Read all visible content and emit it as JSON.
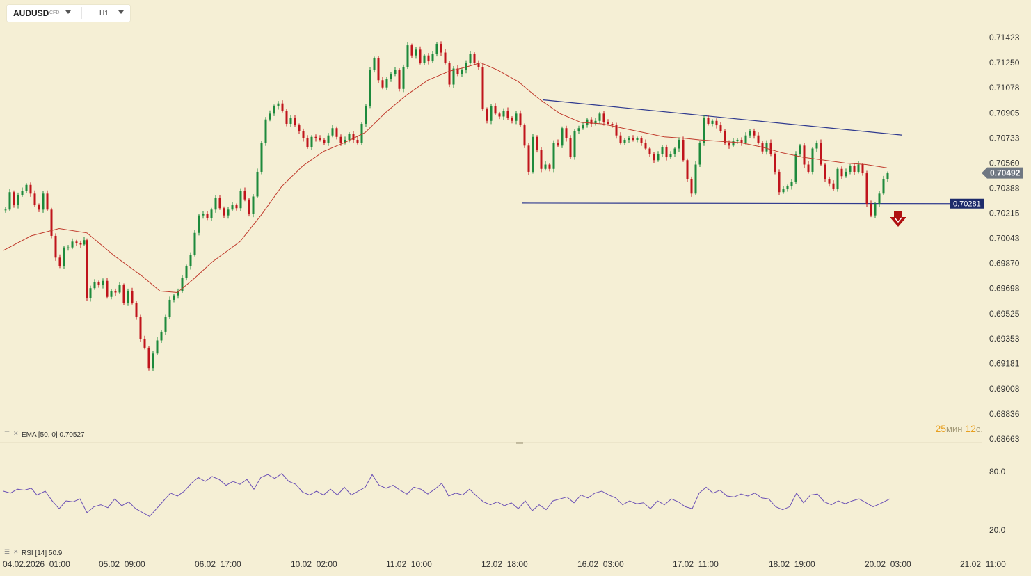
{
  "header": {
    "symbol": "AUDUSD",
    "type": "CFD",
    "timeframe": "H1"
  },
  "indicators": {
    "ema": {
      "label": "EMA [50, 0] 0.70527",
      "color": "#c0392b"
    },
    "rsi": {
      "label": "RSI [14] 50.9",
      "color": "#6a4fb5"
    }
  },
  "timer": {
    "min_value": "25",
    "min_unit": "мин",
    "sec_value": "12",
    "sec_unit": "с."
  },
  "current_price_label": "0.70492",
  "support_label": "0.70281",
  "colors": {
    "background": "#f5efd5",
    "bull": "#1d8a3c",
    "bear": "#c0141c",
    "trend": "#2f3a8f",
    "price_tag": "#6f7782",
    "support_tag": "#1d2b6b",
    "arrow": "#b01010"
  },
  "icons": [
    "settings-icon",
    "close-icon",
    "chevron-down-icon",
    "down-arrow-icon"
  ],
  "chart_data": {
    "type": "candlestick",
    "y_ticks": [
      "0.71423",
      "0.71250",
      "0.71078",
      "0.70905",
      "0.70733",
      "0.70560",
      "0.70388",
      "0.70215",
      "0.70043",
      "0.69870",
      "0.69698",
      "0.69525",
      "0.69353",
      "0.69181",
      "0.69008",
      "0.68836",
      "0.68663"
    ],
    "ylim": [
      0.68663,
      0.71423
    ],
    "x_ticks": [
      "04.02.2026  01:00",
      "05.02  09:00",
      "06.02  17:00",
      "10.02  02:00",
      "11.02  10:00",
      "12.02  18:00",
      "16.02  03:00",
      "17.02  11:00",
      "18.02  19:00",
      "20.02  03:00",
      "21.02  11:00"
    ],
    "close_path": [
      [
        0,
        0.7024
      ],
      [
        6,
        0.7024
      ],
      [
        12,
        0.7036
      ],
      [
        18,
        0.7027
      ],
      [
        24,
        0.7034
      ],
      [
        30,
        0.7037
      ],
      [
        36,
        0.7041
      ],
      [
        42,
        0.7035
      ],
      [
        48,
        0.7027
      ],
      [
        54,
        0.7024
      ],
      [
        60,
        0.7035
      ],
      [
        66,
        0.7024
      ],
      [
        72,
        0.7006
      ],
      [
        78,
        0.6991
      ],
      [
        84,
        0.6985
      ],
      [
        90,
        0.6998
      ],
      [
        96,
        0.6998
      ],
      [
        102,
        0.7002
      ],
      [
        108,
        0.7001
      ],
      [
        114,
        0.7
      ],
      [
        118,
        0.7003
      ],
      [
        122,
        0.6963
      ],
      [
        128,
        0.697
      ],
      [
        134,
        0.6974
      ],
      [
        140,
        0.6972
      ],
      [
        146,
        0.6975
      ],
      [
        152,
        0.6964
      ],
      [
        158,
        0.6968
      ],
      [
        164,
        0.6967
      ],
      [
        170,
        0.6972
      ],
      [
        176,
        0.696
      ],
      [
        182,
        0.6968
      ],
      [
        188,
        0.696
      ],
      [
        194,
        0.695
      ],
      [
        200,
        0.6935
      ],
      [
        206,
        0.6929
      ],
      [
        212,
        0.6915
      ],
      [
        218,
        0.6925
      ],
      [
        224,
        0.6934
      ],
      [
        230,
        0.694
      ],
      [
        236,
        0.695
      ],
      [
        242,
        0.6962
      ],
      [
        248,
        0.6965
      ],
      [
        254,
        0.6968
      ],
      [
        260,
        0.6977
      ],
      [
        266,
        0.6985
      ],
      [
        272,
        0.6993
      ],
      [
        278,
        0.7008
      ],
      [
        284,
        0.702
      ],
      [
        290,
        0.7021
      ],
      [
        296,
        0.7018
      ],
      [
        302,
        0.7024
      ],
      [
        308,
        0.7032
      ],
      [
        314,
        0.7025
      ],
      [
        320,
        0.702
      ],
      [
        326,
        0.7024
      ],
      [
        332,
        0.7027
      ],
      [
        338,
        0.7025
      ],
      [
        344,
        0.7037
      ],
      [
        350,
        0.7031
      ],
      [
        356,
        0.7021
      ],
      [
        362,
        0.7033
      ],
      [
        368,
        0.705
      ],
      [
        374,
        0.707
      ],
      [
        380,
        0.7086
      ],
      [
        386,
        0.709
      ],
      [
        392,
        0.7095
      ],
      [
        398,
        0.7097
      ],
      [
        404,
        0.7092
      ],
      [
        410,
        0.7083
      ],
      [
        416,
        0.7087
      ],
      [
        422,
        0.7082
      ],
      [
        428,
        0.7078
      ],
      [
        434,
        0.7073
      ],
      [
        440,
        0.7067
      ],
      [
        446,
        0.7074
      ],
      [
        452,
        0.7073
      ],
      [
        458,
        0.7072
      ],
      [
        464,
        0.707
      ],
      [
        470,
        0.7075
      ],
      [
        476,
        0.708
      ],
      [
        482,
        0.7074
      ],
      [
        488,
        0.707
      ],
      [
        494,
        0.7072
      ],
      [
        500,
        0.7076
      ],
      [
        506,
        0.7072
      ],
      [
        512,
        0.707
      ],
      [
        518,
        0.7083
      ],
      [
        524,
        0.7095
      ],
      [
        530,
        0.712
      ],
      [
        536,
        0.7128
      ],
      [
        542,
        0.7113
      ],
      [
        548,
        0.7108
      ],
      [
        554,
        0.7114
      ],
      [
        560,
        0.7117
      ],
      [
        566,
        0.712
      ],
      [
        572,
        0.7107
      ],
      [
        578,
        0.7122
      ],
      [
        584,
        0.7137
      ],
      [
        590,
        0.713
      ],
      [
        596,
        0.7134
      ],
      [
        602,
        0.7125
      ],
      [
        608,
        0.713
      ],
      [
        614,
        0.7126
      ],
      [
        620,
        0.7131
      ],
      [
        626,
        0.7138
      ],
      [
        632,
        0.7132
      ],
      [
        638,
        0.7125
      ],
      [
        644,
        0.711
      ],
      [
        650,
        0.7121
      ],
      [
        656,
        0.7117
      ],
      [
        662,
        0.712
      ],
      [
        668,
        0.7125
      ],
      [
        674,
        0.7131
      ],
      [
        680,
        0.7125
      ],
      [
        686,
        0.7122
      ],
      [
        692,
        0.7093
      ],
      [
        698,
        0.7085
      ],
      [
        704,
        0.7095
      ],
      [
        710,
        0.709
      ],
      [
        716,
        0.7088
      ],
      [
        722,
        0.7092
      ],
      [
        728,
        0.7087
      ],
      [
        734,
        0.7085
      ],
      [
        740,
        0.709
      ],
      [
        746,
        0.7082
      ],
      [
        752,
        0.7068
      ],
      [
        758,
        0.705
      ],
      [
        764,
        0.7074
      ],
      [
        770,
        0.7065
      ],
      [
        776,
        0.7052
      ],
      [
        782,
        0.7055
      ],
      [
        788,
        0.7052
      ],
      [
        794,
        0.707
      ],
      [
        800,
        0.7068
      ],
      [
        806,
        0.708
      ],
      [
        812,
        0.7073
      ],
      [
        818,
        0.706
      ],
      [
        824,
        0.7078
      ],
      [
        830,
        0.708
      ],
      [
        836,
        0.7082
      ],
      [
        842,
        0.7086
      ],
      [
        848,
        0.7083
      ],
      [
        854,
        0.7085
      ],
      [
        860,
        0.709
      ],
      [
        866,
        0.7084
      ],
      [
        872,
        0.7083
      ],
      [
        878,
        0.7082
      ],
      [
        884,
        0.7075
      ],
      [
        890,
        0.707
      ],
      [
        896,
        0.7072
      ],
      [
        902,
        0.7073
      ],
      [
        908,
        0.7072
      ],
      [
        914,
        0.7073
      ],
      [
        920,
        0.707
      ],
      [
        926,
        0.7066
      ],
      [
        932,
        0.7062
      ],
      [
        938,
        0.7058
      ],
      [
        944,
        0.7062
      ],
      [
        950,
        0.7067
      ],
      [
        956,
        0.706
      ],
      [
        962,
        0.7062
      ],
      [
        968,
        0.7066
      ],
      [
        974,
        0.7072
      ],
      [
        980,
        0.7058
      ],
      [
        986,
        0.7045
      ],
      [
        992,
        0.7035
      ],
      [
        998,
        0.7055
      ],
      [
        1004,
        0.707
      ],
      [
        1010,
        0.7087
      ],
      [
        1016,
        0.7083
      ],
      [
        1022,
        0.7085
      ],
      [
        1028,
        0.7082
      ],
      [
        1034,
        0.7078
      ],
      [
        1040,
        0.707
      ],
      [
        1046,
        0.7068
      ],
      [
        1052,
        0.7071
      ],
      [
        1058,
        0.7072
      ],
      [
        1064,
        0.707
      ],
      [
        1070,
        0.7075
      ],
      [
        1076,
        0.7078
      ],
      [
        1082,
        0.7075
      ],
      [
        1088,
        0.707
      ],
      [
        1094,
        0.7064
      ],
      [
        1100,
        0.707
      ],
      [
        1106,
        0.7062
      ],
      [
        1112,
        0.705
      ],
      [
        1118,
        0.7036
      ],
      [
        1124,
        0.7038
      ],
      [
        1130,
        0.704
      ],
      [
        1136,
        0.7043
      ],
      [
        1142,
        0.7062
      ],
      [
        1148,
        0.7068
      ],
      [
        1154,
        0.7055
      ],
      [
        1160,
        0.705
      ],
      [
        1166,
        0.7066
      ],
      [
        1172,
        0.707
      ],
      [
        1178,
        0.7055
      ],
      [
        1184,
        0.7045
      ],
      [
        1190,
        0.7042
      ],
      [
        1196,
        0.7038
      ],
      [
        1202,
        0.7052
      ],
      [
        1208,
        0.7047
      ],
      [
        1214,
        0.705
      ],
      [
        1220,
        0.7054
      ],
      [
        1226,
        0.705
      ],
      [
        1232,
        0.7055
      ],
      [
        1238,
        0.7049
      ],
      [
        1244,
        0.7028
      ],
      [
        1250,
        0.702
      ],
      [
        1256,
        0.7028
      ],
      [
        1262,
        0.7035
      ],
      [
        1268,
        0.7045
      ],
      [
        1274,
        0.7049
      ]
    ],
    "ema_path": [
      [
        0,
        0.6996
      ],
      [
        40,
        0.7006
      ],
      [
        80,
        0.7011
      ],
      [
        120,
        0.7008
      ],
      [
        160,
        0.6992
      ],
      [
        200,
        0.6978
      ],
      [
        225,
        0.6968
      ],
      [
        250,
        0.6967
      ],
      [
        275,
        0.6977
      ],
      [
        300,
        0.6988
      ],
      [
        340,
        0.7002
      ],
      [
        370,
        0.702
      ],
      [
        400,
        0.704
      ],
      [
        430,
        0.7054
      ],
      [
        460,
        0.7064
      ],
      [
        490,
        0.707
      ],
      [
        520,
        0.7077
      ],
      [
        550,
        0.7091
      ],
      [
        580,
        0.7103
      ],
      [
        610,
        0.7113
      ],
      [
        640,
        0.7119
      ],
      [
        665,
        0.7122
      ],
      [
        686,
        0.7125
      ],
      [
        710,
        0.712
      ],
      [
        740,
        0.7112
      ],
      [
        770,
        0.71
      ],
      [
        800,
        0.709
      ],
      [
        830,
        0.7084
      ],
      [
        860,
        0.7083
      ],
      [
        890,
        0.708
      ],
      [
        920,
        0.7077
      ],
      [
        950,
        0.7074
      ],
      [
        980,
        0.7073
      ],
      [
        1000,
        0.7072
      ],
      [
        1030,
        0.7071
      ],
      [
        1060,
        0.707
      ],
      [
        1090,
        0.7067
      ],
      [
        1120,
        0.7063
      ],
      [
        1150,
        0.706
      ],
      [
        1180,
        0.7058
      ],
      [
        1210,
        0.7056
      ],
      [
        1240,
        0.7055
      ],
      [
        1270,
        0.70527
      ]
    ],
    "rsi_ticks": [
      "80.0",
      "20.0"
    ],
    "rsi_range": [
      0,
      100
    ],
    "rsi_path": [
      [
        0,
        60
      ],
      [
        10,
        58
      ],
      [
        20,
        62
      ],
      [
        30,
        61
      ],
      [
        40,
        63
      ],
      [
        48,
        56
      ],
      [
        60,
        60
      ],
      [
        70,
        50
      ],
      [
        80,
        42
      ],
      [
        90,
        50
      ],
      [
        100,
        49
      ],
      [
        110,
        52
      ],
      [
        120,
        38
      ],
      [
        130,
        44
      ],
      [
        140,
        46
      ],
      [
        150,
        43
      ],
      [
        160,
        52
      ],
      [
        170,
        45
      ],
      [
        180,
        49
      ],
      [
        190,
        42
      ],
      [
        200,
        38
      ],
      [
        210,
        34
      ],
      [
        220,
        42
      ],
      [
        230,
        50
      ],
      [
        240,
        58
      ],
      [
        250,
        55
      ],
      [
        260,
        60
      ],
      [
        270,
        68
      ],
      [
        280,
        74
      ],
      [
        290,
        70
      ],
      [
        300,
        75
      ],
      [
        310,
        72
      ],
      [
        320,
        66
      ],
      [
        330,
        70
      ],
      [
        340,
        67
      ],
      [
        350,
        72
      ],
      [
        360,
        62
      ],
      [
        370,
        74
      ],
      [
        380,
        77
      ],
      [
        390,
        73
      ],
      [
        400,
        78
      ],
      [
        410,
        70
      ],
      [
        420,
        67
      ],
      [
        430,
        59
      ],
      [
        440,
        56
      ],
      [
        450,
        60
      ],
      [
        460,
        56
      ],
      [
        470,
        62
      ],
      [
        480,
        56
      ],
      [
        490,
        64
      ],
      [
        500,
        56
      ],
      [
        510,
        60
      ],
      [
        520,
        64
      ],
      [
        530,
        77
      ],
      [
        540,
        66
      ],
      [
        550,
        63
      ],
      [
        560,
        66
      ],
      [
        570,
        61
      ],
      [
        580,
        57
      ],
      [
        590,
        64
      ],
      [
        600,
        62
      ],
      [
        610,
        57
      ],
      [
        620,
        62
      ],
      [
        630,
        68
      ],
      [
        640,
        55
      ],
      [
        650,
        58
      ],
      [
        660,
        56
      ],
      [
        670,
        62
      ],
      [
        680,
        55
      ],
      [
        690,
        49
      ],
      [
        700,
        46
      ],
      [
        710,
        49
      ],
      [
        720,
        45
      ],
      [
        730,
        48
      ],
      [
        740,
        42
      ],
      [
        750,
        50
      ],
      [
        760,
        40
      ],
      [
        770,
        46
      ],
      [
        780,
        41
      ],
      [
        790,
        50
      ],
      [
        800,
        52
      ],
      [
        810,
        54
      ],
      [
        820,
        48
      ],
      [
        830,
        56
      ],
      [
        840,
        53
      ],
      [
        850,
        58
      ],
      [
        860,
        60
      ],
      [
        870,
        56
      ],
      [
        880,
        53
      ],
      [
        890,
        46
      ],
      [
        900,
        50
      ],
      [
        910,
        47
      ],
      [
        920,
        48
      ],
      [
        930,
        42
      ],
      [
        940,
        50
      ],
      [
        950,
        46
      ],
      [
        960,
        52
      ],
      [
        970,
        49
      ],
      [
        980,
        44
      ],
      [
        990,
        42
      ],
      [
        1000,
        58
      ],
      [
        1010,
        64
      ],
      [
        1020,
        58
      ],
      [
        1030,
        61
      ],
      [
        1040,
        55
      ],
      [
        1050,
        54
      ],
      [
        1060,
        57
      ],
      [
        1070,
        55
      ],
      [
        1080,
        58
      ],
      [
        1090,
        53
      ],
      [
        1100,
        52
      ],
      [
        1110,
        44
      ],
      [
        1120,
        41
      ],
      [
        1130,
        44
      ],
      [
        1140,
        58
      ],
      [
        1150,
        48
      ],
      [
        1160,
        56
      ],
      [
        1170,
        57
      ],
      [
        1180,
        49
      ],
      [
        1190,
        46
      ],
      [
        1200,
        50
      ],
      [
        1210,
        47
      ],
      [
        1220,
        50
      ],
      [
        1230,
        52
      ],
      [
        1240,
        48
      ],
      [
        1250,
        44
      ],
      [
        1260,
        47
      ],
      [
        1274,
        52
      ]
    ],
    "trend_lines": [
      {
        "name": "resistance",
        "from": [
          775,
          0.70995
        ],
        "to": [
          1292,
          0.70752
        ]
      },
      {
        "name": "support",
        "from": [
          745,
          0.70285
        ],
        "to": [
          1366,
          0.70281
        ]
      }
    ],
    "current_price": 0.70492,
    "support_level": 0.70281
  }
}
